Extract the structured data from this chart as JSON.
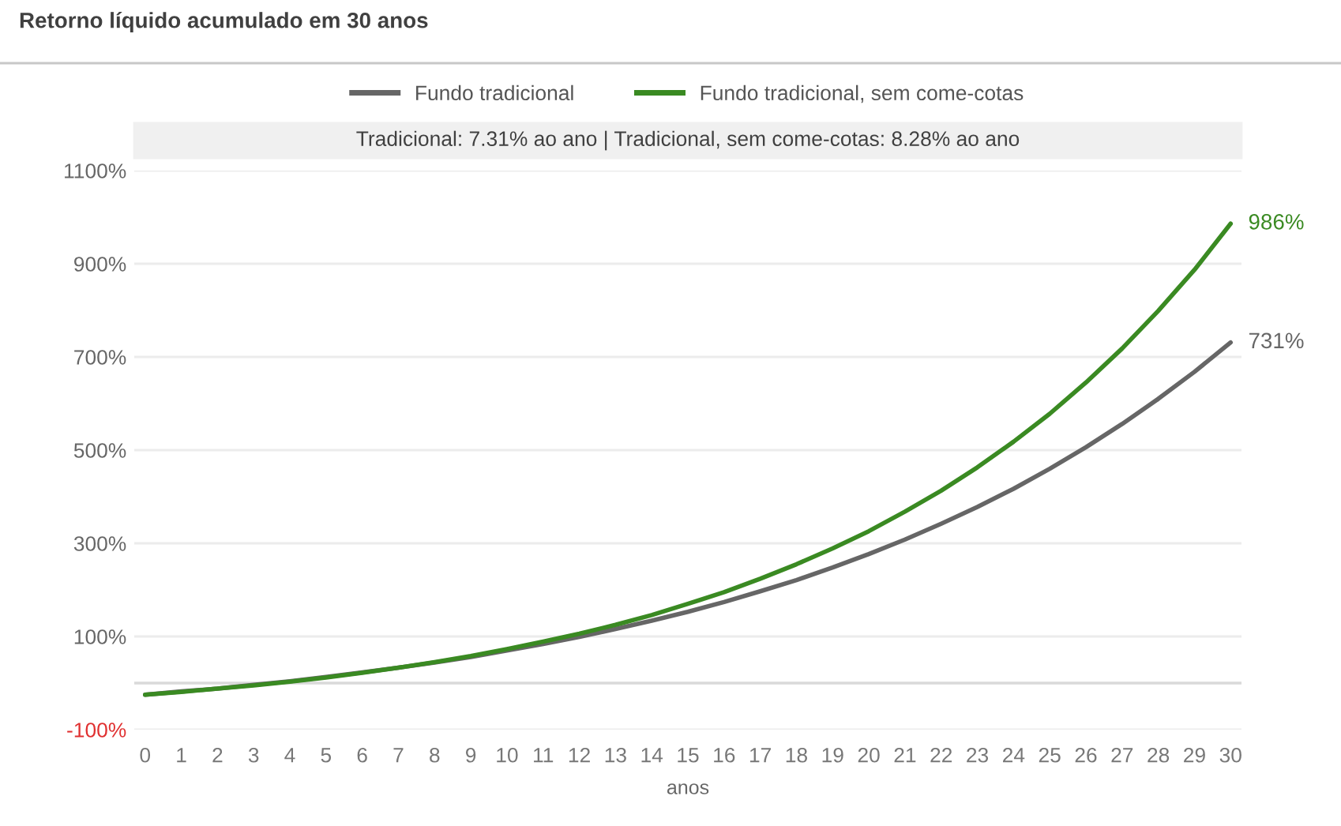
{
  "chart_data": {
    "type": "line",
    "title": "Retorno líquido acumulado em 30 anos",
    "subtitle": "Tradicional: 7.31% ao ano | Tradicional, sem come-cotas: 8.28% ao ano",
    "xlabel": "anos",
    "x": [
      0,
      1,
      2,
      3,
      4,
      5,
      6,
      7,
      8,
      9,
      10,
      11,
      12,
      13,
      14,
      15,
      16,
      17,
      18,
      19,
      20,
      21,
      22,
      23,
      24,
      25,
      26,
      27,
      28,
      29,
      30
    ],
    "series": [
      {
        "name": "Fundo tradicional",
        "color": "#666666",
        "values": [
          -25,
          -18,
          -12,
          -4,
          4,
          13,
          23,
          33,
          44,
          56,
          70,
          84,
          99,
          116,
          134,
          153,
          174,
          197,
          221,
          248,
          277,
          308,
          342,
          378,
          417,
          460,
          506,
          556,
          610,
          668,
          731
        ],
        "value_labels": [
          null,
          null,
          null,
          null,
          null,
          null,
          null,
          null,
          null,
          null,
          null,
          null,
          null,
          null,
          null,
          null,
          null,
          null,
          null,
          null,
          null,
          null,
          null,
          null,
          null,
          null,
          null,
          null,
          null,
          null,
          "731%"
        ]
      },
      {
        "name": "Fundo tradicional, sem come-cotas",
        "color": "#3a8a22",
        "values": [
          -25,
          -19,
          -12,
          -5,
          3,
          12,
          22,
          33,
          45,
          58,
          73,
          89,
          106,
          125,
          146,
          170,
          195,
          224,
          255,
          289,
          326,
          368,
          413,
          463,
          518,
          578,
          645,
          718,
          799,
          887,
          986
        ],
        "value_labels": [
          null,
          null,
          null,
          null,
          null,
          null,
          null,
          null,
          null,
          null,
          null,
          null,
          null,
          null,
          null,
          null,
          null,
          null,
          null,
          null,
          null,
          null,
          null,
          null,
          null,
          null,
          null,
          null,
          null,
          null,
          "986%"
        ]
      }
    ],
    "xlim": [
      -0.3,
      30.3
    ],
    "xticks": [
      0,
      1,
      2,
      3,
      4,
      5,
      6,
      7,
      8,
      9,
      10,
      11,
      12,
      13,
      14,
      15,
      16,
      17,
      18,
      19,
      20,
      21,
      22,
      23,
      24,
      25,
      26,
      27,
      28,
      29,
      30
    ],
    "ylim": [
      -100,
      1100
    ],
    "yticks": [
      {
        "value": -100,
        "label": "-100%"
      },
      {
        "value": 100,
        "label": "100%"
      },
      {
        "value": 300,
        "label": "300%"
      },
      {
        "value": 500,
        "label": "500%"
      },
      {
        "value": 700,
        "label": "700%"
      },
      {
        "value": 900,
        "label": "900%"
      },
      {
        "value": 1100,
        "label": "1100%"
      }
    ],
    "ref_lines": [
      {
        "axis": "y",
        "value": 0,
        "label": null,
        "color": "#d9d9d9"
      }
    ],
    "grid": "y",
    "legend": "top",
    "marker": "none",
    "line_style": "solid"
  }
}
